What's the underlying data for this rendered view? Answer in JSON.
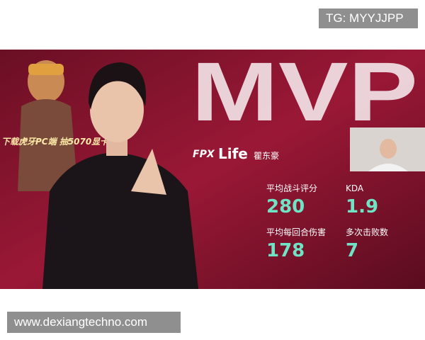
{
  "watermark_top": "TG: MYYJJPP",
  "banner": "下载虎牙PC端 抽5070显卡",
  "headline": "MVP",
  "player": {
    "team": "FPX",
    "name": "Life",
    "name_cn": "瞿东豪"
  },
  "stats": [
    {
      "label": "平均战斗评分",
      "value": 280
    },
    {
      "label": "KDA",
      "value": 1.9
    },
    {
      "label": "平均每回合伤害",
      "value": 178
    },
    {
      "label": "多次击败数",
      "value": 7
    }
  ],
  "watermark_bottom": "www.dexiangtechno.com"
}
